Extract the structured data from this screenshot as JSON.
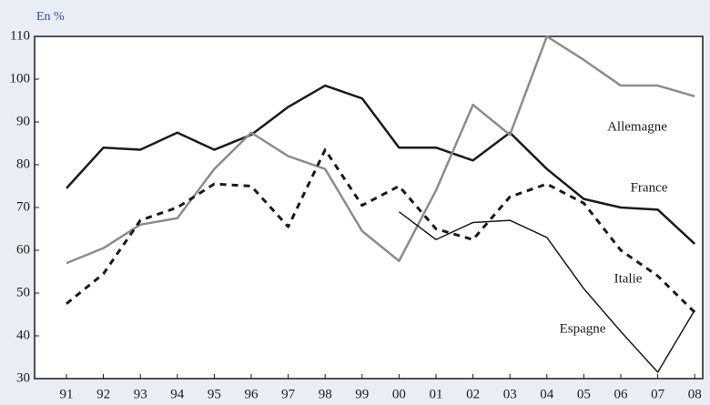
{
  "chart_data": {
    "type": "line",
    "unit_label": "En %",
    "categories": [
      "91",
      "92",
      "93",
      "94",
      "95",
      "96",
      "97",
      "98",
      "99",
      "00",
      "01",
      "02",
      "03",
      "04",
      "05",
      "06",
      "07",
      "08"
    ],
    "ylim": [
      30,
      110
    ],
    "yticks": [
      30,
      40,
      50,
      60,
      70,
      80,
      90,
      100,
      110
    ],
    "series": [
      {
        "name": "France",
        "color": "#1a1a1a",
        "width": 2.5,
        "dashed": false,
        "values": [
          74.5,
          84,
          83.5,
          87.5,
          83.5,
          87,
          93.5,
          98.5,
          95.5,
          84,
          84,
          81,
          87.5,
          79,
          72,
          70,
          69.5,
          61.5
        ]
      },
      {
        "name": "Allemagne",
        "color": "#8c8c8c",
        "width": 2.5,
        "dashed": false,
        "values": [
          57,
          60.5,
          66,
          67.5,
          79,
          87.5,
          82,
          79,
          64.5,
          57.5,
          74,
          94,
          87,
          110,
          104.5,
          98.5,
          98.5,
          96
        ]
      },
      {
        "name": "Italie",
        "color": "#1a1a1a",
        "width": 3,
        "dashed": true,
        "values": [
          47.5,
          54.5,
          67,
          70,
          75.5,
          75,
          65.5,
          83.5,
          70.5,
          75,
          65,
          62.5,
          72.5,
          75.5,
          71,
          60,
          54,
          45.5
        ]
      },
      {
        "name": "Espagne",
        "color": "#1a1a1a",
        "width": 1.5,
        "dashed": false,
        "values": [
          null,
          null,
          null,
          null,
          null,
          null,
          null,
          null,
          null,
          69,
          62.5,
          66.5,
          67,
          63,
          51,
          41,
          31.5,
          46
        ]
      }
    ]
  }
}
